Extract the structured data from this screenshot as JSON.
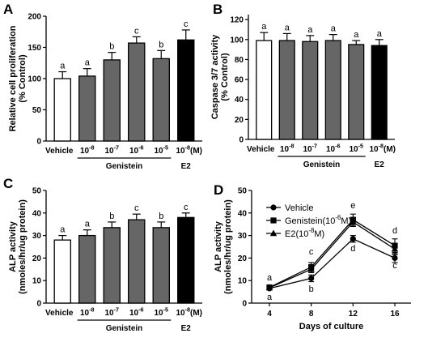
{
  "colors": {
    "vehicle": "#ffffff",
    "genistein": "#666666",
    "e2": "#000000",
    "axis": "#000000"
  },
  "chart_data": [
    {
      "panel": "A",
      "type": "bar",
      "ylabel_lines": [
        "Relative cell proliferation",
        "(% Control)"
      ],
      "ylim": [
        0,
        200
      ],
      "yticks": [
        "0",
        "50",
        "100",
        "150",
        "200"
      ],
      "categories": [
        "Vehicle",
        "10-8",
        "10-7",
        "10-6",
        "10-5",
        "10-8(M)"
      ],
      "fills": [
        "vehicle",
        "genistein",
        "genistein",
        "genistein",
        "genistein",
        "e2"
      ],
      "values": [
        100,
        104,
        130,
        157,
        132,
        162
      ],
      "errors": [
        11,
        12,
        12,
        10,
        13,
        16
      ],
      "letters": [
        "a",
        "a",
        "b",
        "c",
        "b",
        "c"
      ],
      "group_label": "Genistein",
      "e2_label": "E2"
    },
    {
      "panel": "B",
      "type": "bar",
      "ylabel_lines": [
        "Caspase 3/7 activity",
        "(% Control)"
      ],
      "ylim": [
        0,
        125
      ],
      "yticks": [
        "0",
        "20",
        "40",
        "60",
        "80",
        "100",
        "120"
      ],
      "categories": [
        "Vehicle",
        "10-8",
        "10-7",
        "10-6",
        "10-5",
        "10-8(M)"
      ],
      "fills": [
        "vehicle",
        "genistein",
        "genistein",
        "genistein",
        "genistein",
        "e2"
      ],
      "values": [
        99,
        99,
        98,
        99,
        95,
        94
      ],
      "errors": [
        8,
        7,
        6,
        6,
        4,
        6
      ],
      "letters": [
        "a",
        "a",
        "a",
        "a",
        "a",
        "a"
      ],
      "group_label": "Genistein",
      "e2_label": "E2"
    },
    {
      "panel": "C",
      "type": "bar",
      "ylabel_lines": [
        "ALP activity",
        "(nmoles/hr/ug protein)"
      ],
      "ylim": [
        0,
        50
      ],
      "yticks": [
        "0",
        "10",
        "20",
        "30",
        "40",
        "50"
      ],
      "categories": [
        "Vehicle",
        "10-8",
        "10-7",
        "10-6",
        "10-5",
        "10-8(M)"
      ],
      "fills": [
        "vehicle",
        "genistein",
        "genistein",
        "genistein",
        "genistein",
        "e2"
      ],
      "values": [
        28,
        30,
        33.5,
        37,
        33.5,
        38
      ],
      "errors": [
        2,
        2.5,
        2.5,
        2.5,
        2.5,
        2
      ],
      "letters": [
        "a",
        "a",
        "b",
        "c",
        "b",
        "c"
      ],
      "group_label": "Genistein",
      "e2_label": "E2"
    },
    {
      "panel": "D",
      "type": "line",
      "ylabel_lines": [
        "ALP activity",
        "(nmoles/hr/ug protein)"
      ],
      "xlabel": "Days of culture",
      "ylim": [
        0,
        50
      ],
      "yticks": [
        "0",
        "10",
        "20",
        "30",
        "40",
        "50"
      ],
      "x": [
        4,
        8,
        12,
        16
      ],
      "xticks": [
        "4",
        "8",
        "12",
        "16"
      ],
      "series": [
        {
          "name": "Vehicle",
          "values": [
            6.5,
            11,
            28.5,
            20
          ],
          "errors": [
            0.5,
            1.5,
            1.5,
            2
          ],
          "marker": "circle"
        },
        {
          "name": "Genistein(10-6M)",
          "values": [
            7,
            16,
            37,
            25.5
          ],
          "errors": [
            0.5,
            2,
            2.5,
            3
          ],
          "marker": "square"
        },
        {
          "name": "E2(10-8M)",
          "values": [
            6.8,
            15,
            36,
            24
          ],
          "errors": [
            0.5,
            1.5,
            2,
            2.5
          ],
          "marker": "triangle"
        }
      ],
      "annotations": [
        {
          "text": "a",
          "x": 4,
          "y": 10
        },
        {
          "text": "a",
          "x": 4,
          "y": 1.5
        },
        {
          "text": "c",
          "x": 8,
          "y": 21.5
        },
        {
          "text": "b",
          "x": 8,
          "y": 5
        },
        {
          "text": "e",
          "x": 12,
          "y": 42
        },
        {
          "text": "d",
          "x": 12,
          "y": 23
        },
        {
          "text": "d",
          "x": 16,
          "y": 31
        },
        {
          "text": "c",
          "x": 16,
          "y": 15.5
        }
      ]
    }
  ]
}
